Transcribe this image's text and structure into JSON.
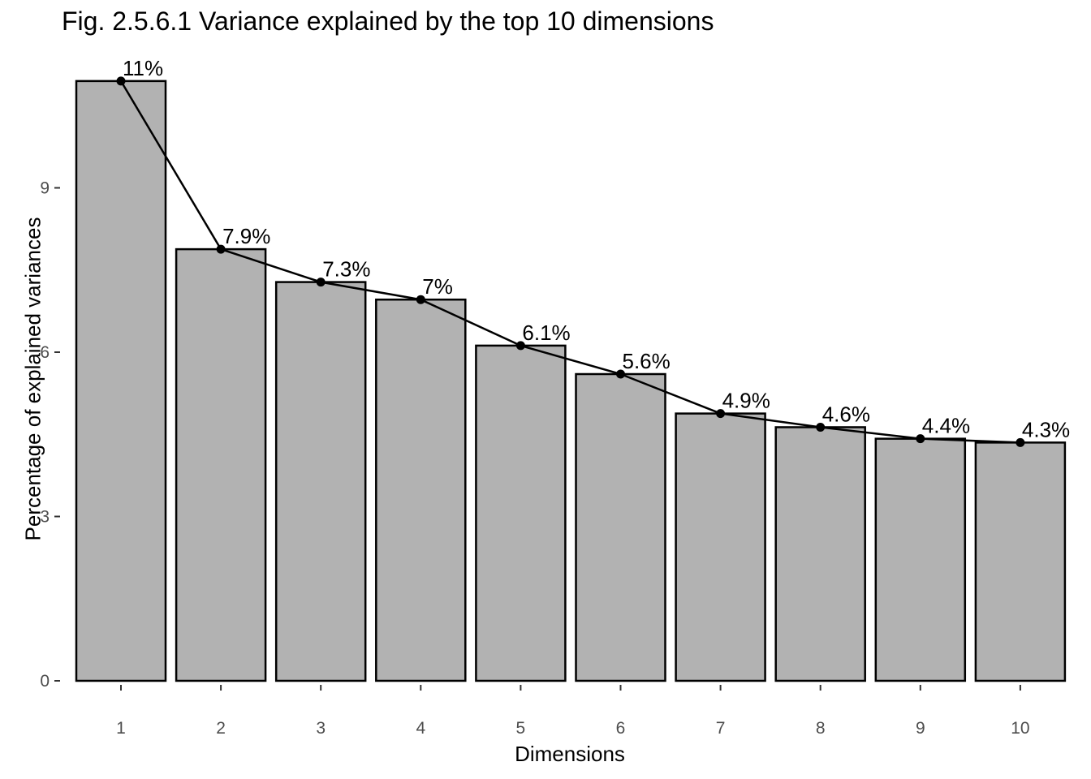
{
  "chart_data": {
    "type": "bar",
    "title": "Fig. 2.5.6.1 Variance explained by the top 10 dimensions",
    "xlabel": "Dimensions",
    "ylabel": "Percentage of explained variances",
    "categories": [
      "1",
      "2",
      "3",
      "4",
      "5",
      "6",
      "7",
      "8",
      "9",
      "10"
    ],
    "values": [
      10.95,
      7.88,
      7.28,
      6.96,
      6.12,
      5.6,
      4.88,
      4.63,
      4.42,
      4.35
    ],
    "data_labels": [
      "11%",
      "7.9%",
      "7.3%",
      "7%",
      "6.1%",
      "5.6%",
      "4.9%",
      "4.6%",
      "4.4%",
      "4.3%"
    ],
    "y_ticks": [
      0,
      3,
      6,
      9
    ],
    "ylim": [
      0,
      10.95
    ],
    "overlay_line": true,
    "grid": false,
    "bar_fill": "#b2b2b2",
    "bar_outline": "#000000",
    "line_color": "#000000"
  }
}
